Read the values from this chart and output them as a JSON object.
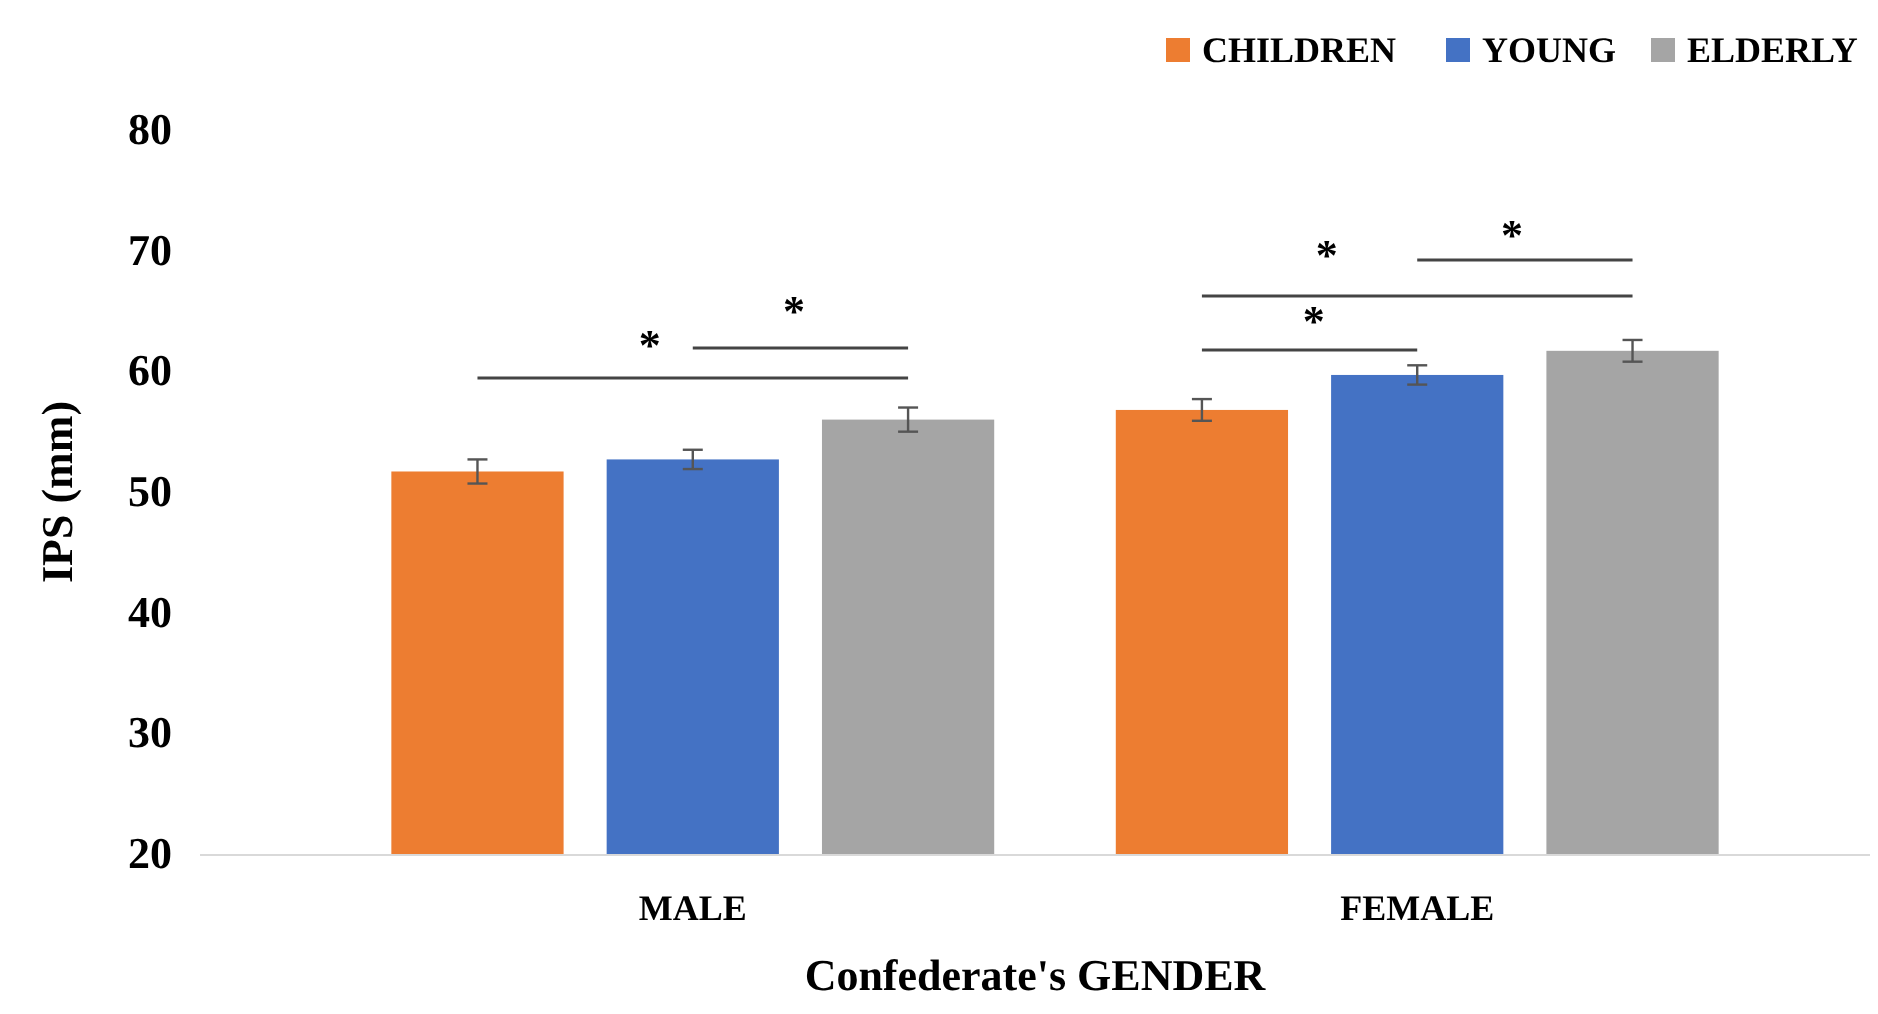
{
  "chart_data": {
    "type": "bar",
    "xlabel": "Confederate's GENDER",
    "ylabel": "IPS (mm)",
    "categories": [
      "MALE",
      "FEMALE"
    ],
    "series": [
      {
        "name": "CHILDREN",
        "color": "#ed7d31",
        "values": [
          51.7,
          56.8
        ],
        "errors": [
          1,
          0.9
        ]
      },
      {
        "name": "YOUNG",
        "color": "#4472c4",
        "values": [
          52.7,
          59.7
        ],
        "errors": [
          0.8,
          0.8
        ]
      },
      {
        "name": "ELDERLY",
        "color": "#a5a5a5",
        "values": [
          56,
          61.7
        ],
        "errors": [
          1,
          0.9
        ]
      }
    ],
    "ylim": [
      20,
      80
    ],
    "yticks": [
      20,
      30,
      40,
      50,
      60,
      70,
      80
    ],
    "grid": false,
    "legend": "top right",
    "annotations": [
      "*",
      "*",
      "*",
      "*",
      "*"
    ]
  }
}
